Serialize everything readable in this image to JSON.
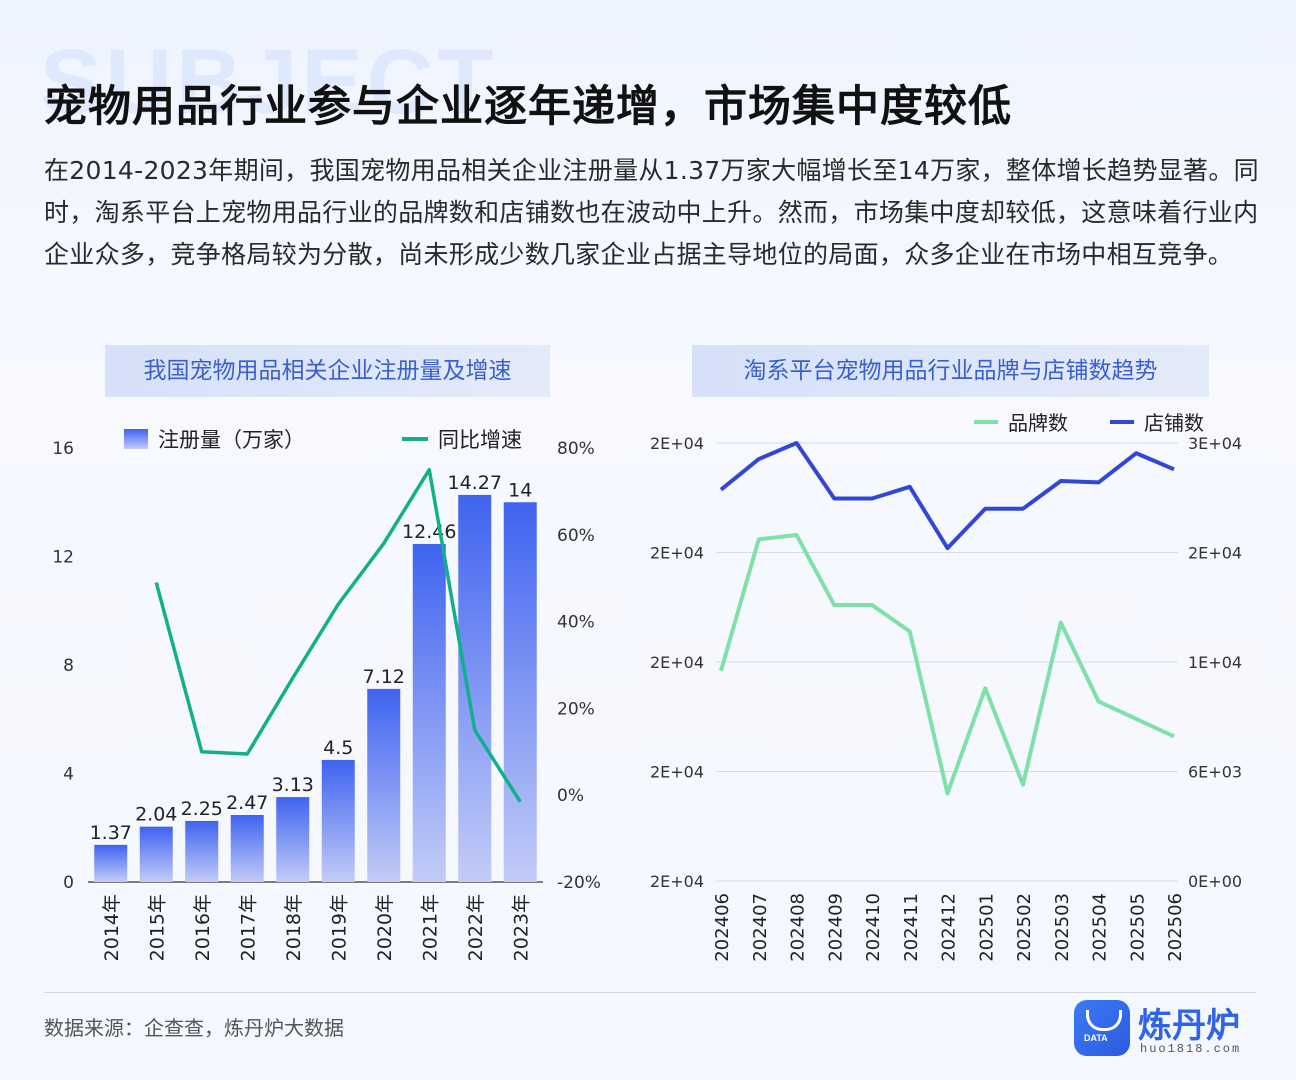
{
  "page": {
    "bg_word": "SUBJECT",
    "title": "宠物用品行业参与企业逐年递增，市场集中度较低",
    "intro": "在2014-2023年期间，我国宠物用品相关企业注册量从1.37万家大幅增长至14万家，整体增长趋势显著。同时，淘系平台上宠物用品行业的品牌数和店铺数也在波动中上升。然而，市场集中度却较低，这意味着行业内企业众多，竞争格局较为分散，尚未形成少数几家企业占据主导地位的局面，众多企业在市场中相互竞争。",
    "source": "数据来源：企查查，炼丹炉大数据",
    "logo": {
      "badge": "DATA",
      "name": "炼丹炉",
      "url": "huo1818.com"
    }
  },
  "colors": {
    "bar_top": "#3f63f0",
    "bar_bottom": "#c3ccf7",
    "growth_line": "#12b08a",
    "brand_line": "#7fe0a9",
    "store_line": "#3347d6",
    "panel_title": "#3a5fd0"
  },
  "chart_data": [
    {
      "type": "bar",
      "title": "我国宠物用品相关企业注册量及增速",
      "categories": [
        "2014年",
        "2015年",
        "2016年",
        "2017年",
        "2018年",
        "2019年",
        "2020年",
        "2021年",
        "2022年",
        "2023年"
      ],
      "series": [
        {
          "name": "注册量（万家）",
          "type": "bar",
          "axis": "left",
          "values": [
            1.37,
            2.04,
            2.25,
            2.47,
            3.13,
            4.5,
            7.12,
            12.46,
            14.27,
            14
          ],
          "labels": [
            "1.37",
            "2.04",
            "2.25",
            "2.47",
            "3.13",
            "4.5",
            "7.12",
            "12.46",
            "14.27",
            "14"
          ]
        },
        {
          "name": "同比增速",
          "type": "line",
          "axis": "right",
          "values": [
            null,
            49,
            10,
            9.5,
            27,
            44,
            58,
            75,
            15,
            -1.5
          ]
        }
      ],
      "y_left": {
        "lim": [
          0,
          16
        ],
        "ticks": [
          "0",
          "4",
          "8",
          "12",
          "16"
        ]
      },
      "y_right": {
        "lim": [
          -20,
          80
        ],
        "ticks": [
          "-20%",
          "0%",
          "20%",
          "40%",
          "60%",
          "80%"
        ]
      },
      "legend_position": "top"
    },
    {
      "type": "line",
      "title": "淘系平台宠物用品行业品牌与店铺数趋势",
      "categories": [
        "202406",
        "202407",
        "202408",
        "202409",
        "202410",
        "202411",
        "202412",
        "202501",
        "202502",
        "202503",
        "202504",
        "202505",
        "202506"
      ],
      "series": [
        {
          "name": "品牌数",
          "axis": "left",
          "values": [
            0.48,
            0.78,
            0.79,
            0.63,
            0.63,
            0.57,
            0.2,
            0.44,
            0.22,
            0.59,
            0.41,
            0.37,
            0.33
          ]
        },
        {
          "name": "店铺数",
          "axis": "right",
          "values": [
            26800,
            28900,
            30000,
            26200,
            26200,
            27000,
            22800,
            25500,
            25500,
            27400,
            27300,
            29300,
            28200
          ]
        }
      ],
      "y_left": {
        "lim": [
          0,
          1
        ],
        "ticks": [
          "2E+04",
          "2E+04",
          "2E+04",
          "2E+04",
          "2E+04"
        ]
      },
      "y_right": {
        "lim": [
          0,
          30000
        ],
        "ticks": [
          "0E+00",
          "6E+03",
          "1E+04",
          "2E+04",
          "3E+04"
        ]
      },
      "legend_position": "top-right"
    }
  ]
}
